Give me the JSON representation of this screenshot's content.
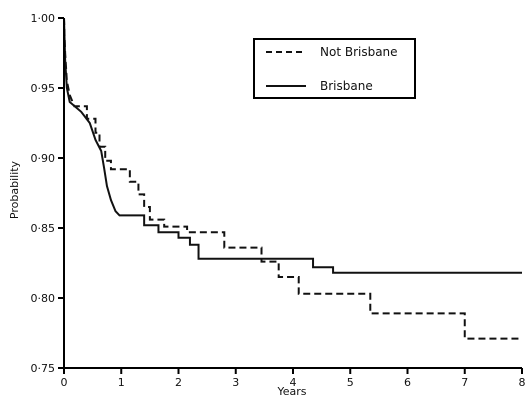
{
  "chart_data": {
    "type": "line",
    "title": "",
    "xlabel": "Years",
    "ylabel": "Probability",
    "xlim": [
      0,
      8
    ],
    "ylim": [
      0.75,
      1.0
    ],
    "x_ticks": [
      "0",
      "1",
      "2",
      "3",
      "4",
      "5",
      "6",
      "7",
      "8"
    ],
    "y_ticks": [
      "0·75",
      "0·80",
      "0·85",
      "0·90",
      "0·95",
      "1·00"
    ],
    "grid": false,
    "legend_position": "top-right",
    "series": [
      {
        "name": "Not Brisbane",
        "line_style": "dashed",
        "color": "#111111",
        "points": [
          [
            0,
            1.0
          ],
          [
            0.02,
            0.975
          ],
          [
            0.05,
            0.955
          ],
          [
            0.1,
            0.945
          ],
          [
            0.18,
            0.937
          ],
          [
            0.4,
            0.937
          ],
          [
            0.4,
            0.928
          ],
          [
            0.55,
            0.928
          ],
          [
            0.55,
            0.918
          ],
          [
            0.62,
            0.918
          ],
          [
            0.62,
            0.908
          ],
          [
            0.72,
            0.908
          ],
          [
            0.72,
            0.898
          ],
          [
            0.82,
            0.898
          ],
          [
            0.82,
            0.892
          ],
          [
            1.15,
            0.892
          ],
          [
            1.15,
            0.883
          ],
          [
            1.3,
            0.883
          ],
          [
            1.3,
            0.874
          ],
          [
            1.4,
            0.874
          ],
          [
            1.4,
            0.865
          ],
          [
            1.5,
            0.865
          ],
          [
            1.5,
            0.856
          ],
          [
            1.75,
            0.856
          ],
          [
            1.75,
            0.851
          ],
          [
            2.15,
            0.851
          ],
          [
            2.15,
            0.847
          ],
          [
            2.8,
            0.847
          ],
          [
            2.8,
            0.836
          ],
          [
            3.45,
            0.836
          ],
          [
            3.45,
            0.826
          ],
          [
            3.75,
            0.826
          ],
          [
            3.75,
            0.815
          ],
          [
            4.1,
            0.815
          ],
          [
            4.1,
            0.803
          ],
          [
            5.35,
            0.803
          ],
          [
            5.35,
            0.789
          ],
          [
            7.0,
            0.789
          ],
          [
            7.0,
            0.771
          ],
          [
            8.0,
            0.771
          ]
        ]
      },
      {
        "name": "Brisbane",
        "line_style": "solid",
        "color": "#111111",
        "points": [
          [
            0,
            1.0
          ],
          [
            0.02,
            0.97
          ],
          [
            0.05,
            0.95
          ],
          [
            0.1,
            0.94
          ],
          [
            0.3,
            0.933
          ],
          [
            0.45,
            0.925
          ],
          [
            0.55,
            0.913
          ],
          [
            0.65,
            0.905
          ],
          [
            0.7,
            0.893
          ],
          [
            0.75,
            0.88
          ],
          [
            0.82,
            0.87
          ],
          [
            0.9,
            0.862
          ],
          [
            0.97,
            0.859
          ],
          [
            1.4,
            0.859
          ],
          [
            1.4,
            0.852
          ],
          [
            1.65,
            0.852
          ],
          [
            1.65,
            0.847
          ],
          [
            2.0,
            0.847
          ],
          [
            2.0,
            0.843
          ],
          [
            2.2,
            0.843
          ],
          [
            2.2,
            0.838
          ],
          [
            2.35,
            0.838
          ],
          [
            2.35,
            0.828
          ],
          [
            4.35,
            0.828
          ],
          [
            4.35,
            0.822
          ],
          [
            4.7,
            0.822
          ],
          [
            4.7,
            0.818
          ],
          [
            8.0,
            0.818
          ]
        ]
      }
    ]
  }
}
